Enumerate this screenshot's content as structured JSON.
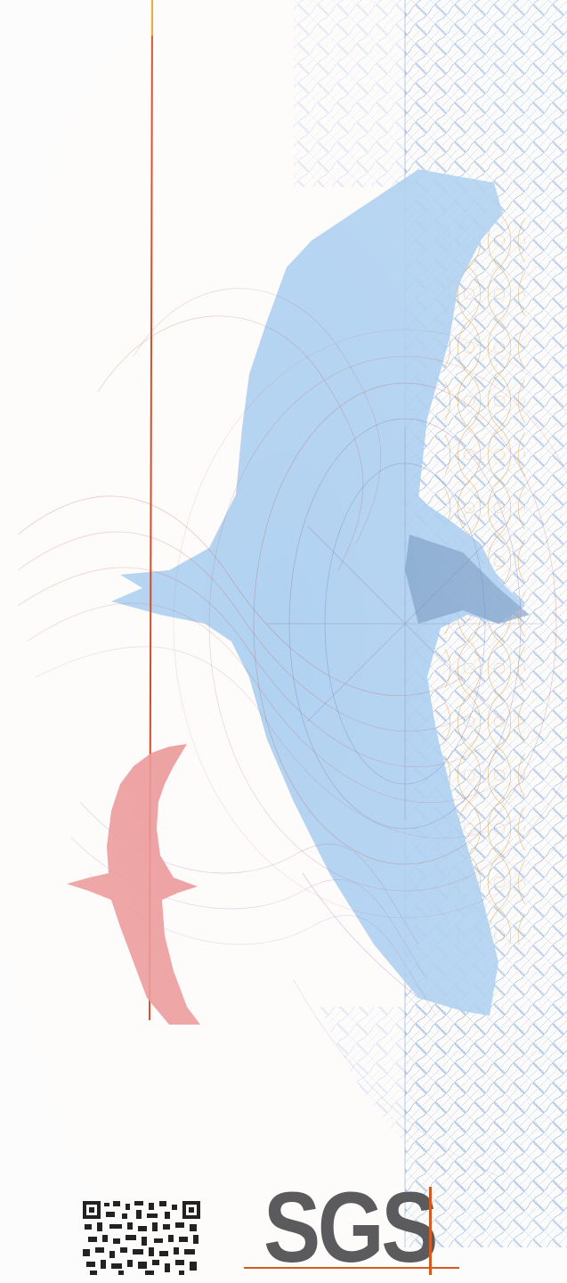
{
  "document": {
    "type": "certificate-security-background",
    "logo": {
      "text": "SGS",
      "text_color": "#5b5b5e",
      "accent_color": "#d35b20"
    },
    "qr_code": {
      "icon": "qr-code-icon"
    },
    "colors": {
      "paper": "#fdfcfb",
      "guilloche_blue": "#5c8fd1",
      "guilloche_gold": "#e0a040",
      "guilloche_rose": "#c0504a",
      "bird_blue": "#a9cdef",
      "bird_red": "#eb9494",
      "vertical_rule": "#d2421a"
    }
  }
}
